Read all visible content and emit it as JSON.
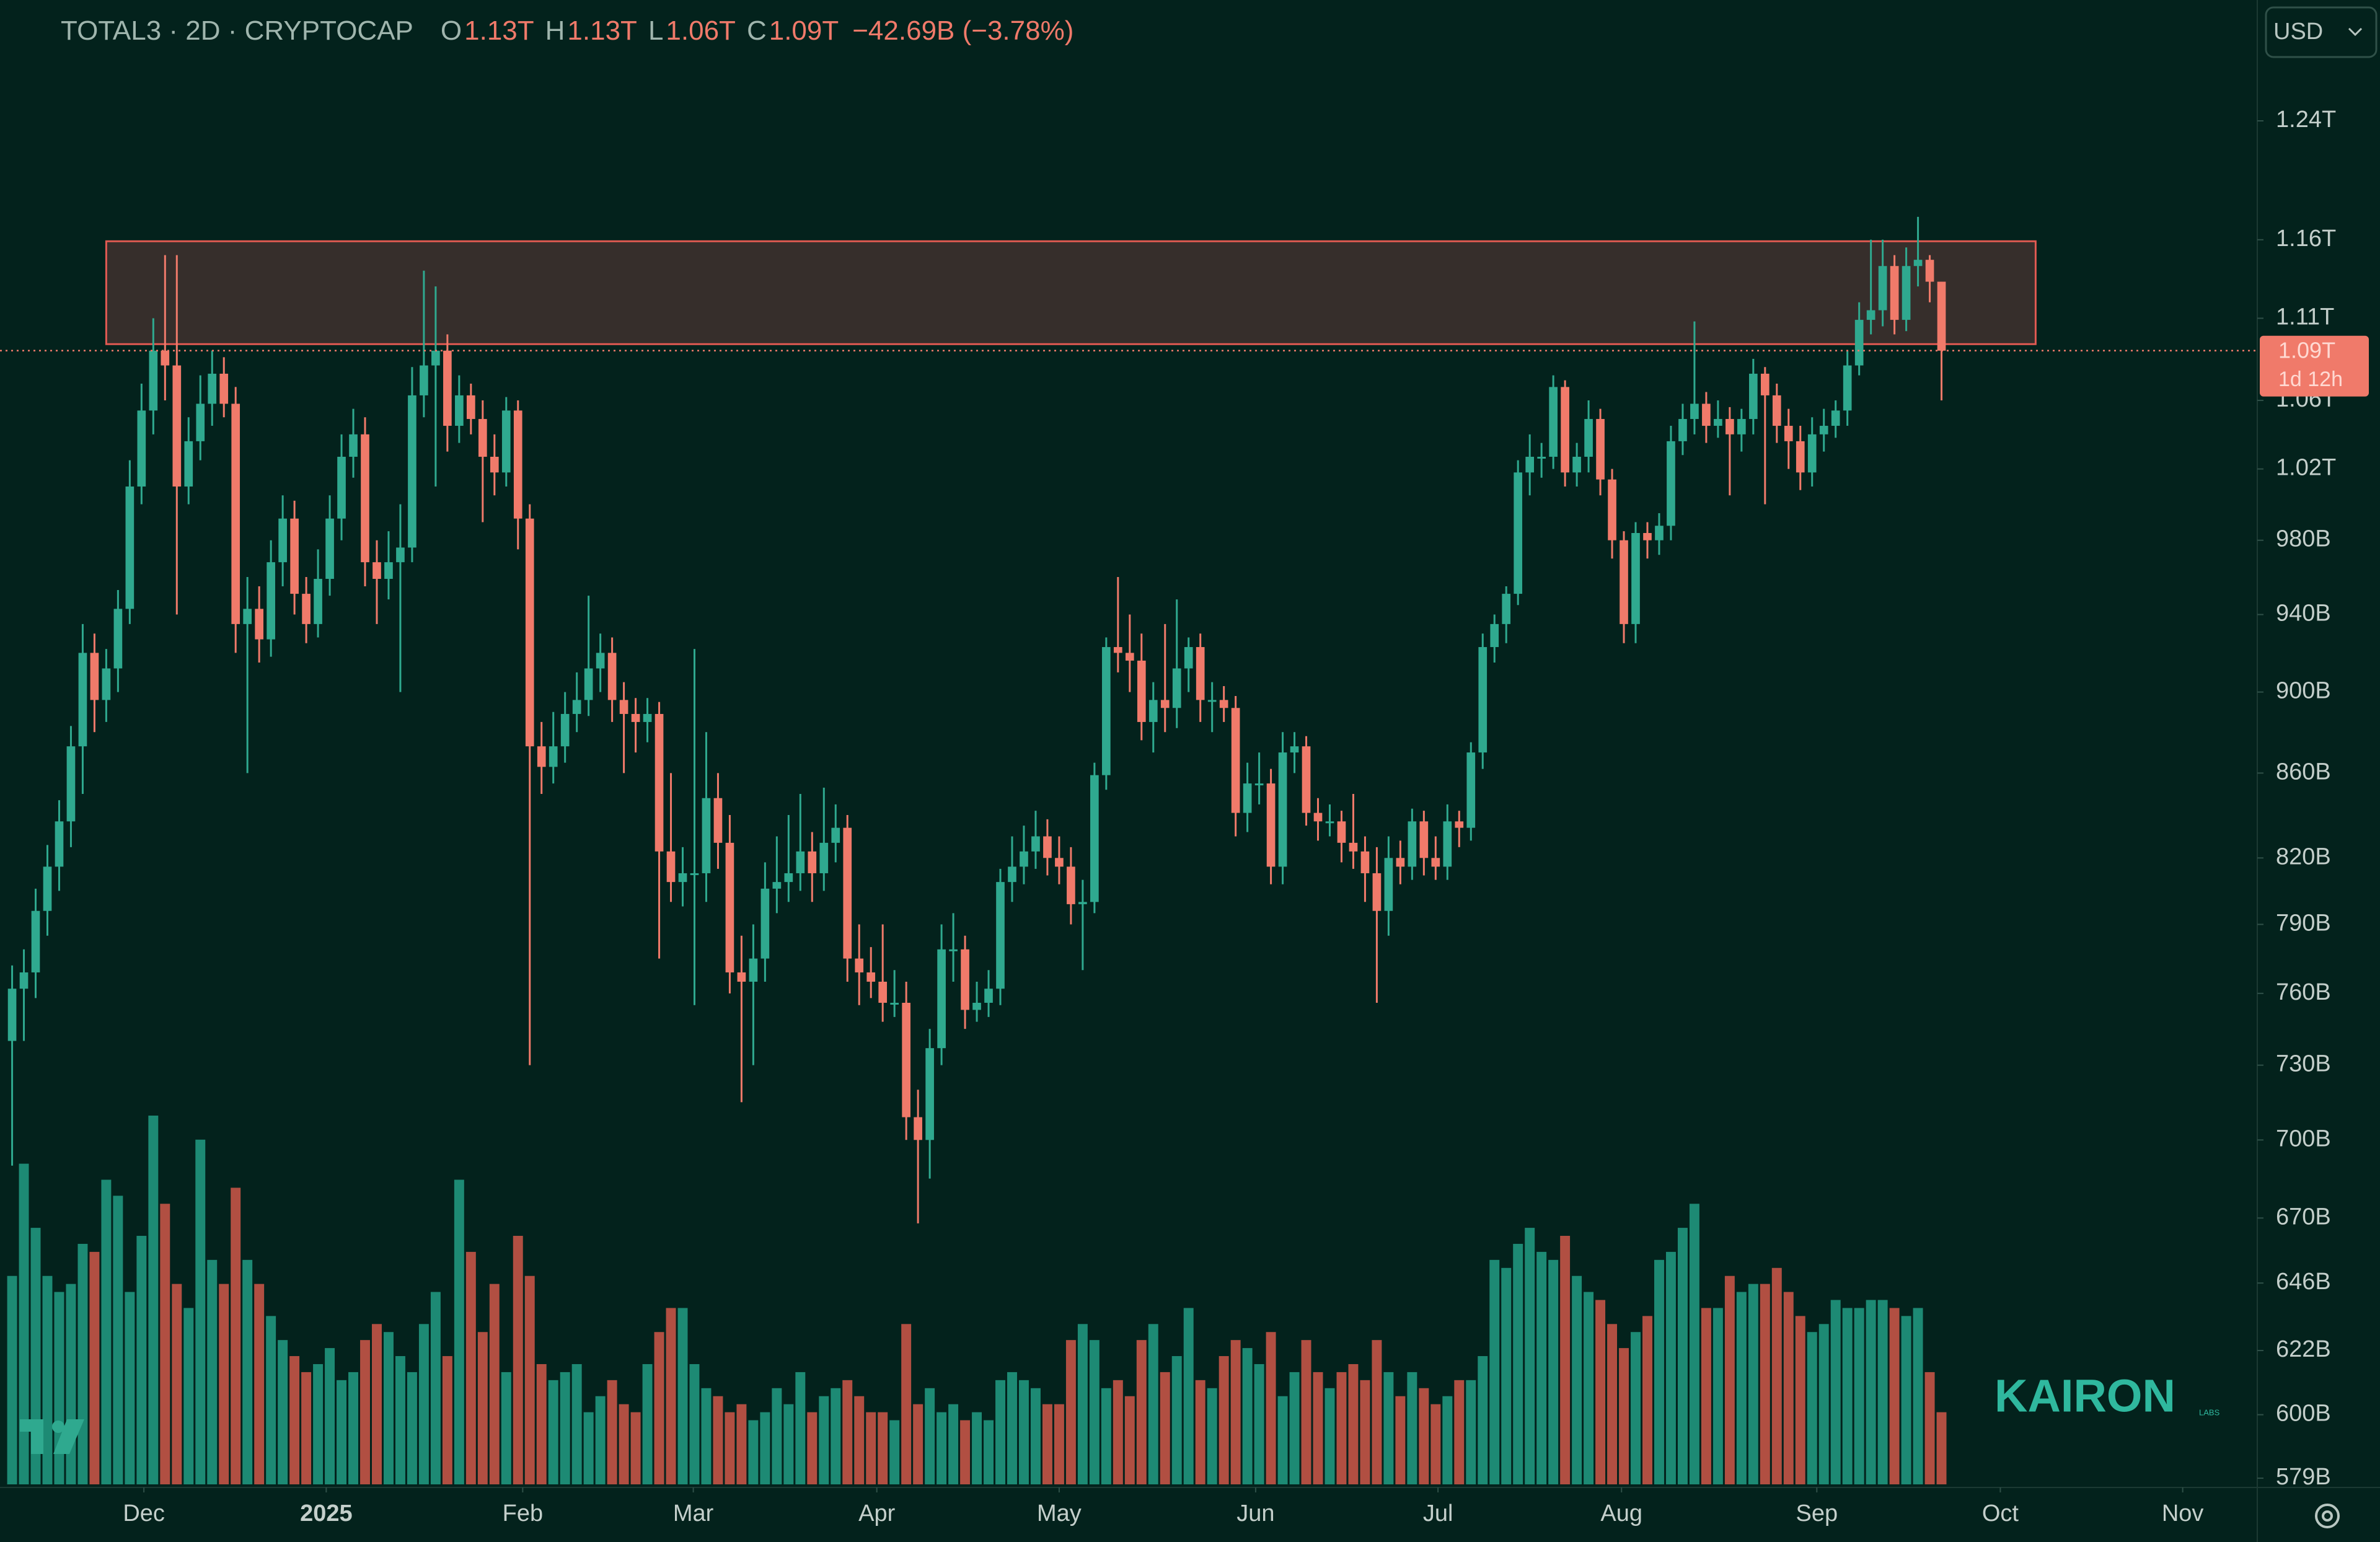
{
  "header": {
    "symbol": "TOTAL3 · 2D · CRYPTOCAP",
    "ohlc": [
      {
        "label": "O",
        "value": "1.13T"
      },
      {
        "label": "H",
        "value": "1.13T"
      },
      {
        "label": "L",
        "value": "1.06T"
      },
      {
        "label": "C",
        "value": "1.09T"
      }
    ],
    "change": "−42.69B (−3.78%)"
  },
  "currency": "USD",
  "last_price_label": "1.09T",
  "countdown": "1d 12h",
  "watermark": "KAIRON",
  "watermark_sub": "LABS",
  "chart_data": {
    "type": "candlestick",
    "log_scale": true,
    "grid": false,
    "colors": {
      "up": "#2fa98f",
      "down": "#f07a6a",
      "volume_up": "#1d8a74",
      "volume_down": "#b14f42",
      "zone_fill": "#3c302d",
      "zone_stroke": "#e05a52"
    },
    "xlim": [
      -1.03,
      190.84
    ],
    "xticks": [
      {
        "value": 11.2,
        "label": "Dec"
      },
      {
        "value": 26.7,
        "label": "2025"
      },
      {
        "value": 43.4,
        "label": "Feb"
      },
      {
        "value": 57.9,
        "label": "Mar"
      },
      {
        "value": 73.5,
        "label": "Apr"
      },
      {
        "value": 89,
        "label": "May"
      },
      {
        "value": 105.7,
        "label": "Jun"
      },
      {
        "value": 121.2,
        "label": "Jul"
      },
      {
        "value": 136.8,
        "label": "Aug"
      },
      {
        "value": 153.4,
        "label": "Sep"
      },
      {
        "value": 169,
        "label": "Oct"
      },
      {
        "value": 184.5,
        "label": "Nov"
      }
    ],
    "ylim": [
      576,
      1327
    ],
    "yticks": [
      {
        "value": 1240,
        "label": "1.24T"
      },
      {
        "value": 1160,
        "label": "1.16T"
      },
      {
        "value": 1110,
        "label": "1.11T"
      },
      {
        "value": 1060,
        "label": "1.06T"
      },
      {
        "value": 1020,
        "label": "1.02T"
      },
      {
        "value": 980,
        "label": "980B"
      },
      {
        "value": 940,
        "label": "940B"
      },
      {
        "value": 900,
        "label": "900B"
      },
      {
        "value": 860,
        "label": "860B"
      },
      {
        "value": 820,
        "label": "820B"
      },
      {
        "value": 790,
        "label": "790B"
      },
      {
        "value": 760,
        "label": "760B"
      },
      {
        "value": 730,
        "label": "730B"
      },
      {
        "value": 700,
        "label": "700B"
      },
      {
        "value": 670,
        "label": "670B"
      },
      {
        "value": 646,
        "label": "646B"
      },
      {
        "value": 622,
        "label": "622B"
      },
      {
        "value": 600,
        "label": "600B"
      },
      {
        "value": 579,
        "label": "579B"
      }
    ],
    "resistance_zone": {
      "y": [
        1094,
        1159
      ],
      "x": [
        8,
        172
      ]
    },
    "open": [
      740,
      762,
      769,
      796,
      816,
      837,
      873,
      920,
      896,
      912,
      943,
      1010,
      1054,
      1090,
      1081,
      1010,
      1036,
      1058,
      1076,
      1058,
      935,
      943,
      927,
      968,
      992,
      951,
      935,
      959,
      992,
      1027,
      1040,
      968,
      959,
      968,
      976,
      1063,
      1081,
      1090,
      1045,
      1063,
      1049,
      1027,
      1018,
      1054,
      992,
      873,
      863,
      873,
      889,
      896,
      912,
      920,
      896,
      889,
      885,
      889,
      823,
      809,
      813,
      813,
      848,
      827,
      769,
      765,
      775,
      806,
      809,
      813,
      823,
      813,
      827,
      834,
      775,
      769,
      765,
      756,
      756,
      709,
      700,
      737,
      779,
      779,
      753,
      756,
      762,
      809,
      816,
      823,
      830,
      820,
      816,
      799,
      800,
      859,
      923,
      920,
      916,
      885,
      896,
      892,
      912,
      923,
      896,
      896,
      892,
      841,
      855,
      855,
      816,
      870,
      873,
      841,
      837,
      837,
      827,
      823,
      813,
      796,
      820,
      816,
      837,
      820,
      816,
      837,
      834,
      870,
      923,
      935,
      951,
      1018,
      1027,
      1027,
      1068,
      1018,
      1027,
      1049,
      1014,
      980,
      935,
      984,
      980,
      988,
      1036,
      1049,
      1058,
      1045,
      1049,
      1040,
      1049,
      1076,
      1063,
      1045,
      1036,
      1018,
      1040,
      1045,
      1054,
      1081,
      1109,
      1115,
      1143,
      1109,
      1143,
      1147,
      1133
    ],
    "high": [
      772,
      779,
      806,
      826,
      847,
      883,
      935,
      930,
      922,
      953,
      1025,
      1070,
      1110,
      1150,
      1150,
      1050,
      1075,
      1090,
      1086,
      1068,
      960,
      955,
      980,
      1005,
      1002,
      960,
      975,
      1005,
      1040,
      1055,
      1050,
      980,
      985,
      1000,
      1080,
      1140,
      1130,
      1100,
      1075,
      1070,
      1060,
      1040,
      1062,
      1060,
      1000,
      885,
      890,
      900,
      910,
      950,
      930,
      928,
      905,
      897,
      897,
      895,
      860,
      825,
      922,
      880,
      860,
      840,
      785,
      790,
      818,
      830,
      840,
      850,
      832,
      853,
      845,
      840,
      790,
      780,
      790,
      770,
      765,
      720,
      745,
      790,
      795,
      785,
      765,
      770,
      815,
      830,
      835,
      842,
      838,
      830,
      825,
      810,
      865,
      928,
      960,
      940,
      930,
      905,
      935,
      948,
      928,
      930,
      905,
      903,
      898,
      865,
      870,
      862,
      880,
      880,
      878,
      848,
      845,
      842,
      850,
      830,
      825,
      830,
      828,
      843,
      842,
      830,
      845,
      842,
      875,
      930,
      940,
      955,
      1025,
      1040,
      1035,
      1075,
      1072,
      1035,
      1060,
      1055,
      1020,
      985,
      990,
      990,
      995,
      1045,
      1058,
      1108,
      1065,
      1060,
      1056,
      1055,
      1085,
      1080,
      1070,
      1055,
      1045,
      1050,
      1055,
      1060,
      1090,
      1120,
      1160,
      1160,
      1150,
      1155,
      1175,
      1150,
      1133
    ],
    "low": [
      690,
      740,
      758,
      785,
      805,
      825,
      850,
      880,
      885,
      900,
      935,
      1000,
      1040,
      1060,
      940,
      1000,
      1025,
      1045,
      1050,
      920,
      860,
      915,
      918,
      955,
      940,
      925,
      928,
      950,
      980,
      1015,
      955,
      935,
      948,
      900,
      968,
      1050,
      1010,
      1030,
      1035,
      1040,
      990,
      1005,
      1010,
      975,
      730,
      850,
      855,
      865,
      880,
      888,
      900,
      885,
      860,
      870,
      875,
      775,
      800,
      798,
      755,
      800,
      815,
      760,
      715,
      730,
      765,
      795,
      800,
      805,
      800,
      805,
      818,
      765,
      755,
      758,
      748,
      750,
      700,
      668,
      685,
      730,
      765,
      745,
      748,
      750,
      755,
      800,
      808,
      815,
      812,
      808,
      790,
      770,
      795,
      852,
      910,
      900,
      876,
      870,
      880,
      882,
      900,
      885,
      880,
      885,
      830,
      832,
      845,
      808,
      808,
      860,
      835,
      828,
      830,
      818,
      815,
      800,
      756,
      785,
      808,
      810,
      812,
      810,
      810,
      825,
      828,
      862,
      915,
      925,
      945,
      1005,
      1015,
      1020,
      1010,
      1010,
      1018,
      1005,
      970,
      925,
      925,
      970,
      972,
      980,
      1028,
      1040,
      1035,
      1038,
      1005,
      1030,
      1040,
      1000,
      1035,
      1020,
      1008,
      1010,
      1030,
      1038,
      1045,
      1075,
      1100,
      1105,
      1100,
      1102,
      1130,
      1120,
      1060
    ],
    "close": [
      762,
      769,
      796,
      816,
      837,
      873,
      920,
      896,
      912,
      943,
      1010,
      1054,
      1090,
      1081,
      1010,
      1036,
      1058,
      1076,
      1058,
      935,
      943,
      927,
      968,
      992,
      951,
      935,
      959,
      992,
      1027,
      1040,
      968,
      959,
      968,
      976,
      1063,
      1081,
      1090,
      1045,
      1063,
      1049,
      1027,
      1018,
      1054,
      992,
      873,
      863,
      873,
      889,
      896,
      912,
      920,
      896,
      889,
      885,
      889,
      823,
      809,
      813,
      813,
      848,
      827,
      769,
      765,
      775,
      806,
      809,
      813,
      823,
      813,
      827,
      834,
      775,
      769,
      765,
      756,
      756,
      709,
      700,
      737,
      779,
      779,
      753,
      756,
      762,
      809,
      816,
      823,
      830,
      820,
      816,
      799,
      800,
      859,
      923,
      920,
      916,
      885,
      896,
      892,
      912,
      923,
      896,
      896,
      892,
      841,
      855,
      855,
      816,
      870,
      873,
      841,
      837,
      837,
      827,
      823,
      813,
      796,
      820,
      816,
      837,
      820,
      816,
      837,
      834,
      870,
      923,
      935,
      951,
      1018,
      1027,
      1027,
      1068,
      1018,
      1027,
      1049,
      1014,
      980,
      935,
      984,
      980,
      988,
      1036,
      1049,
      1058,
      1045,
      1049,
      1040,
      1049,
      1076,
      1063,
      1045,
      1036,
      1018,
      1040,
      1045,
      1054,
      1081,
      1109,
      1115,
      1143,
      1109,
      1143,
      1147,
      1133,
      1090
    ],
    "volume": [
      130,
      200,
      160,
      130,
      120,
      125,
      150,
      145,
      190,
      180,
      120,
      155,
      230,
      175,
      125,
      110,
      215,
      140,
      125,
      185,
      140,
      125,
      105,
      90,
      80,
      70,
      75,
      85,
      65,
      70,
      90,
      100,
      95,
      80,
      70,
      100,
      120,
      80,
      190,
      145,
      95,
      125,
      70,
      155,
      130,
      75,
      65,
      70,
      75,
      45,
      55,
      65,
      50,
      45,
      75,
      95,
      110,
      110,
      75,
      60,
      55,
      45,
      50,
      40,
      45,
      60,
      50,
      70,
      45,
      55,
      60,
      65,
      55,
      45,
      45,
      40,
      100,
      50,
      60,
      45,
      50,
      40,
      45,
      40,
      65,
      70,
      65,
      60,
      50,
      50,
      90,
      100,
      90,
      60,
      65,
      55,
      90,
      100,
      70,
      80,
      110,
      65,
      60,
      80,
      90,
      85,
      75,
      95,
      55,
      70,
      90,
      70,
      60,
      70,
      75,
      65,
      90,
      70,
      55,
      70,
      60,
      50,
      55,
      65,
      65,
      80,
      140,
      135,
      150,
      160,
      145,
      140,
      155,
      130,
      120,
      115,
      100,
      85,
      95,
      105,
      140,
      145,
      160,
      175,
      110,
      110,
      130,
      120,
      125,
      125,
      135,
      120,
      105,
      95,
      100,
      115,
      110,
      110,
      115,
      115,
      110,
      105,
      110,
      70,
      45
    ]
  }
}
